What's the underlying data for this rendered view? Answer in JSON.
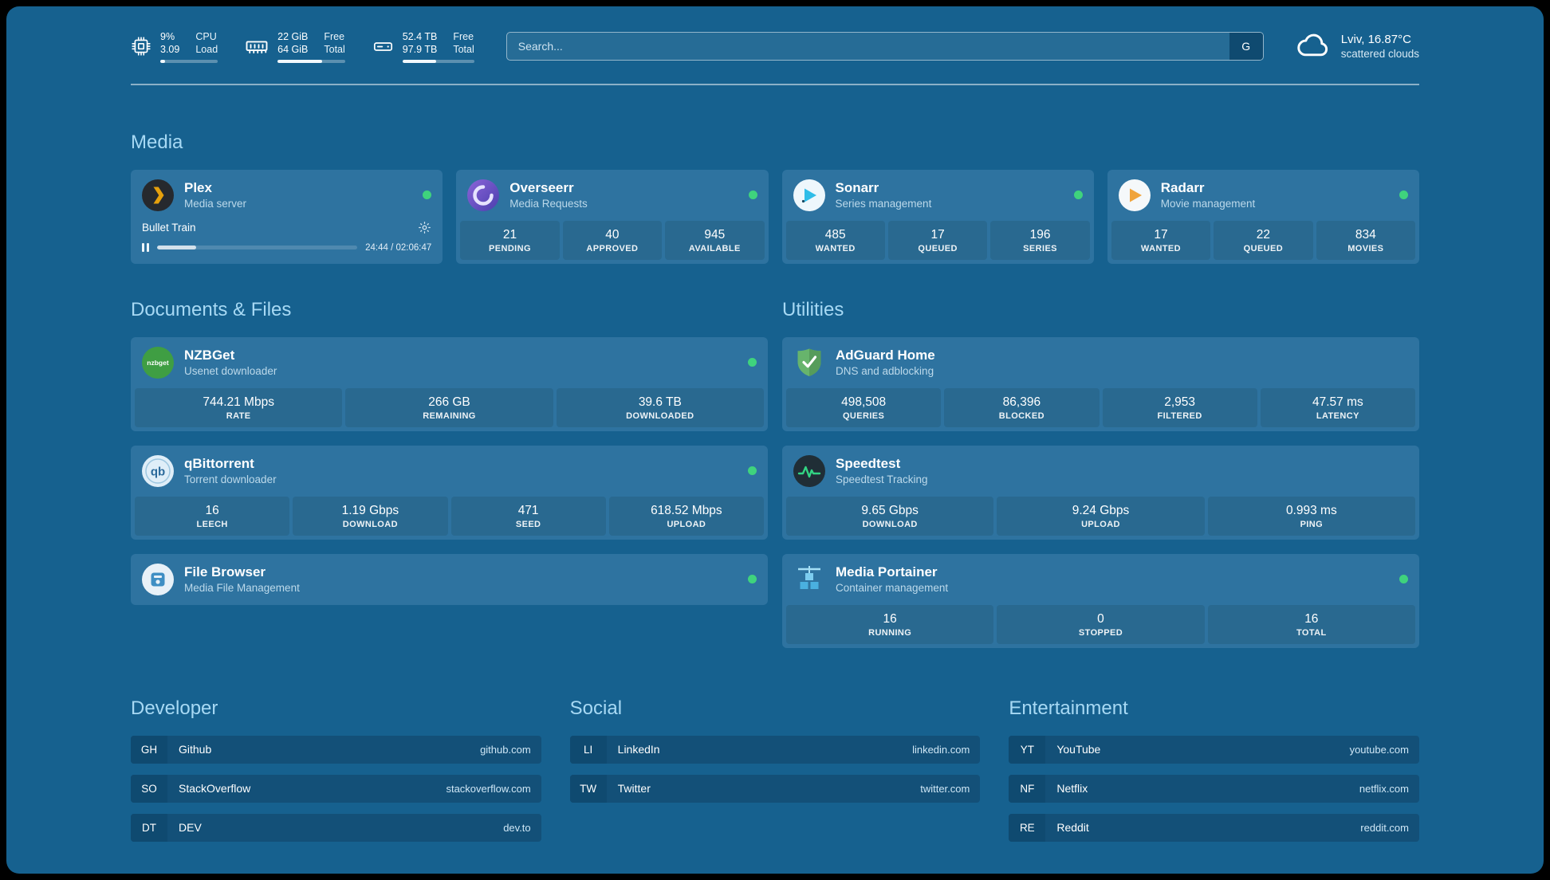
{
  "topbar": {
    "cpu": {
      "value_top": "9%",
      "value_bottom": "3.09",
      "label_top": "CPU",
      "label_bottom": "Load",
      "bar_percent": 9
    },
    "ram": {
      "value_top": "22 GiB",
      "value_bottom": "64 GiB",
      "label_top": "Free",
      "label_bottom": "Total",
      "bar_percent": 66
    },
    "disk": {
      "value_top": "52.4 TB",
      "value_bottom": "97.9 TB",
      "label_top": "Free",
      "label_bottom": "Total",
      "bar_percent": 47
    },
    "search": {
      "placeholder": "Search...",
      "provider_label": "G"
    },
    "weather": {
      "location": "Lviv, 16.87°C",
      "description": "scattered clouds"
    }
  },
  "sections": {
    "media": {
      "heading": "Media"
    },
    "documents": {
      "heading": "Documents & Files"
    },
    "utilities": {
      "heading": "Utilities"
    },
    "developer": {
      "heading": "Developer"
    },
    "social": {
      "heading": "Social"
    },
    "entertainment": {
      "heading": "Entertainment"
    }
  },
  "plex": {
    "name": "Plex",
    "subtitle": "Media server",
    "now_playing": "Bullet Train",
    "time": "24:44 / 02:06:47",
    "progress_percent": 19.5
  },
  "media_cards": [
    {
      "name": "Overseerr",
      "subtitle": "Media Requests",
      "stats": [
        {
          "value": "21",
          "label": "PENDING"
        },
        {
          "value": "40",
          "label": "APPROVED"
        },
        {
          "value": "945",
          "label": "AVAILABLE"
        }
      ]
    },
    {
      "name": "Sonarr",
      "subtitle": "Series management",
      "stats": [
        {
          "value": "485",
          "label": "WANTED"
        },
        {
          "value": "17",
          "label": "QUEUED"
        },
        {
          "value": "196",
          "label": "SERIES"
        }
      ]
    },
    {
      "name": "Radarr",
      "subtitle": "Movie management",
      "stats": [
        {
          "value": "17",
          "label": "WANTED"
        },
        {
          "value": "22",
          "label": "QUEUED"
        },
        {
          "value": "834",
          "label": "MOVIES"
        }
      ]
    }
  ],
  "documents_cards": [
    {
      "name": "NZBGet",
      "subtitle": "Usenet downloader",
      "stats": [
        {
          "value": "744.21 Mbps",
          "label": "RATE"
        },
        {
          "value": "266 GB",
          "label": "REMAINING"
        },
        {
          "value": "39.6 TB",
          "label": "DOWNLOADED"
        }
      ]
    },
    {
      "name": "qBittorrent",
      "subtitle": "Torrent downloader",
      "stats": [
        {
          "value": "16",
          "label": "LEECH"
        },
        {
          "value": "1.19 Gbps",
          "label": "DOWNLOAD"
        },
        {
          "value": "471",
          "label": "SEED"
        },
        {
          "value": "618.52 Mbps",
          "label": "UPLOAD"
        }
      ]
    },
    {
      "name": "File Browser",
      "subtitle": "Media File Management",
      "stats": []
    }
  ],
  "utilities_cards": [
    {
      "name": "AdGuard Home",
      "subtitle": "DNS and adblocking",
      "stats": [
        {
          "value": "498,508",
          "label": "QUERIES"
        },
        {
          "value": "86,396",
          "label": "BLOCKED"
        },
        {
          "value": "2,953",
          "label": "FILTERED"
        },
        {
          "value": "47.57 ms",
          "label": "LATENCY"
        }
      ]
    },
    {
      "name": "Speedtest",
      "subtitle": "Speedtest Tracking",
      "stats": [
        {
          "value": "9.65 Gbps",
          "label": "DOWNLOAD"
        },
        {
          "value": "9.24 Gbps",
          "label": "UPLOAD"
        },
        {
          "value": "0.993 ms",
          "label": "PING"
        }
      ]
    },
    {
      "name": "Media Portainer",
      "subtitle": "Container management",
      "stats": [
        {
          "value": "16",
          "label": "RUNNING"
        },
        {
          "value": "0",
          "label": "STOPPED"
        },
        {
          "value": "16",
          "label": "TOTAL"
        }
      ]
    }
  ],
  "links": {
    "developer": [
      {
        "abbr": "GH",
        "name": "Github",
        "domain": "github.com"
      },
      {
        "abbr": "SO",
        "name": "StackOverflow",
        "domain": "stackoverflow.com"
      },
      {
        "abbr": "DT",
        "name": "DEV",
        "domain": "dev.to"
      }
    ],
    "social": [
      {
        "abbr": "LI",
        "name": "LinkedIn",
        "domain": "linkedin.com"
      },
      {
        "abbr": "TW",
        "name": "Twitter",
        "domain": "twitter.com"
      }
    ],
    "entertainment": [
      {
        "abbr": "YT",
        "name": "YouTube",
        "domain": "youtube.com"
      },
      {
        "abbr": "NF",
        "name": "Netflix",
        "domain": "netflix.com"
      },
      {
        "abbr": "RE",
        "name": "Reddit",
        "domain": "reddit.com"
      }
    ]
  }
}
